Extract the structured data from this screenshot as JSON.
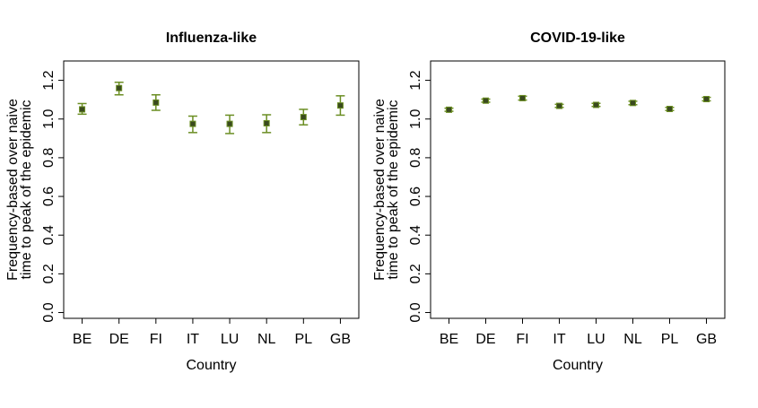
{
  "chart_data": [
    {
      "type": "scatter",
      "title": "Influenza-like",
      "xlabel": "Country",
      "ylabel_line1": "Frequency-based over naive",
      "ylabel_line2": "time to peak of the epidemic",
      "categories": [
        "BE",
        "DE",
        "FI",
        "IT",
        "LU",
        "NL",
        "PL",
        "GB"
      ],
      "values": [
        1.05,
        1.16,
        1.085,
        0.975,
        0.975,
        0.978,
        1.01,
        1.07
      ],
      "lower": [
        1.025,
        1.125,
        1.045,
        0.93,
        0.925,
        0.93,
        0.97,
        1.02
      ],
      "upper": [
        1.08,
        1.19,
        1.125,
        1.015,
        1.02,
        1.022,
        1.05,
        1.12
      ],
      "yticks": [
        "0.0",
        "0.2",
        "0.4",
        "0.6",
        "0.8",
        "1.0",
        "1.2"
      ],
      "ylim": [
        -0.03,
        1.3
      ],
      "point_color": "#3a4a1f",
      "errorbar_color": "#6b8e23"
    },
    {
      "type": "scatter",
      "title": "COVID-19-like",
      "xlabel": "Country",
      "ylabel_line1": "Frequency-based over naive",
      "ylabel_line2": "time to peak of the epidemic",
      "categories": [
        "BE",
        "DE",
        "FI",
        "IT",
        "LU",
        "NL",
        "PL",
        "GB"
      ],
      "values": [
        1.048,
        1.095,
        1.108,
        1.068,
        1.073,
        1.083,
        1.052,
        1.103
      ],
      "lower": [
        1.04,
        1.087,
        1.098,
        1.06,
        1.065,
        1.074,
        1.044,
        1.094
      ],
      "upper": [
        1.056,
        1.103,
        1.118,
        1.076,
        1.081,
        1.092,
        1.06,
        1.112
      ],
      "yticks": [
        "0.0",
        "0.2",
        "0.4",
        "0.6",
        "0.8",
        "1.0",
        "1.2"
      ],
      "ylim": [
        -0.03,
        1.3
      ],
      "point_color": "#3a4a1f",
      "errorbar_color": "#6b8e23"
    }
  ]
}
